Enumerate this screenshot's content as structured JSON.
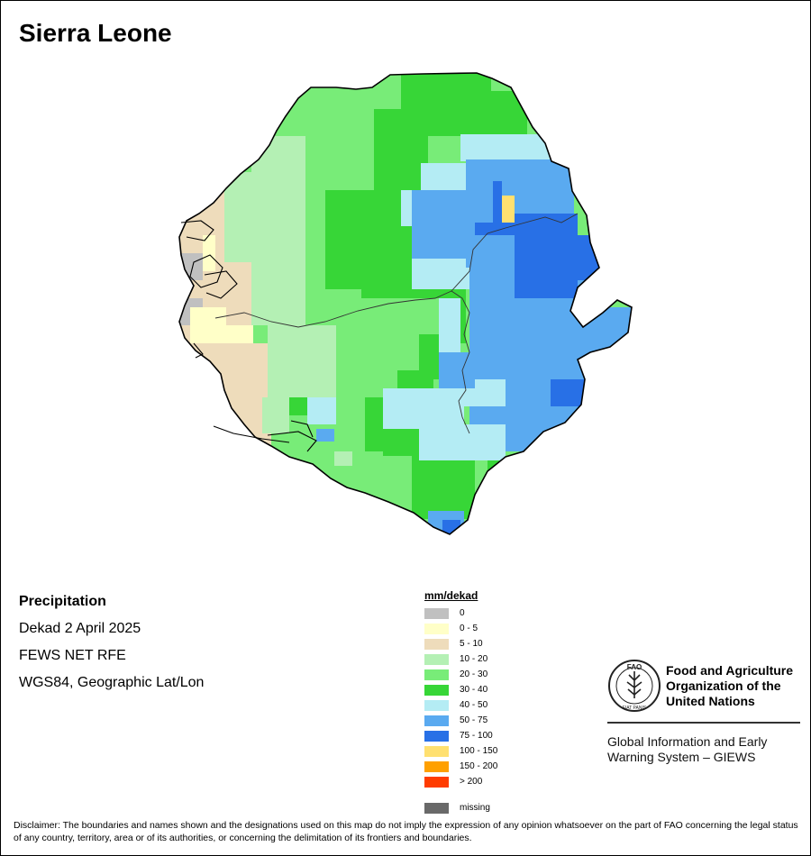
{
  "map": {
    "title": "Sierra Leone",
    "variable": "Precipitation",
    "period": "Dekad 2 April 2025",
    "source": "FEWS NET RFE",
    "projection": "WGS84, Geographic Lat/Lon",
    "classes": {
      "missing": "#696969",
      "0": "#c0c0c0",
      "0-5": "#ffffc8",
      "5-10": "#eedcbb",
      "10-20": "#b4f0b4",
      "20-30": "#78ec78",
      "30-40": "#37d637",
      "40-50": "#b4ecf4",
      "50-75": "#5aaaf0",
      "75-100": "#2870e6",
      "100-150": "#ffe070",
      "150-200": "#ffa000",
      ">200": "#ff3c00"
    }
  },
  "legend": {
    "title": "mm/dekad",
    "items": [
      {
        "label": "0",
        "color": "#c0c0c0"
      },
      {
        "label": "0 - 5",
        "color": "#ffffc8"
      },
      {
        "label": "5 - 10",
        "color": "#eedcbb"
      },
      {
        "label": "10 - 20",
        "color": "#b4f0b4"
      },
      {
        "label": "20 - 30",
        "color": "#78ec78"
      },
      {
        "label": "30 - 40",
        "color": "#37d637"
      },
      {
        "label": "40 - 50",
        "color": "#b4ecf4"
      },
      {
        "label": "50 - 75",
        "color": "#5aaaf0"
      },
      {
        "label": "75 - 100",
        "color": "#2870e6"
      },
      {
        "label": "100 - 150",
        "color": "#ffe070"
      },
      {
        "label": "150 - 200",
        "color": "#ffa000"
      },
      {
        "label": "> 200",
        "color": "#ff3c00"
      }
    ],
    "missing": {
      "label": "missing",
      "color": "#696969"
    }
  },
  "organization": {
    "logo_text": "FAO",
    "motto": "FIAT PANIS",
    "name": "Food and Agriculture Organization of the United Nations",
    "program": "Global Information and Early Warning System – GIEWS"
  },
  "disclaimer": "Disclaimer: The boundaries and names shown and the designations used on this map do not imply the expression of any opinion whatsoever on the part of FAO concerning the legal status of any country, territory, area or of its authorities, or concerning the delimitation of its frontiers and boundaries."
}
